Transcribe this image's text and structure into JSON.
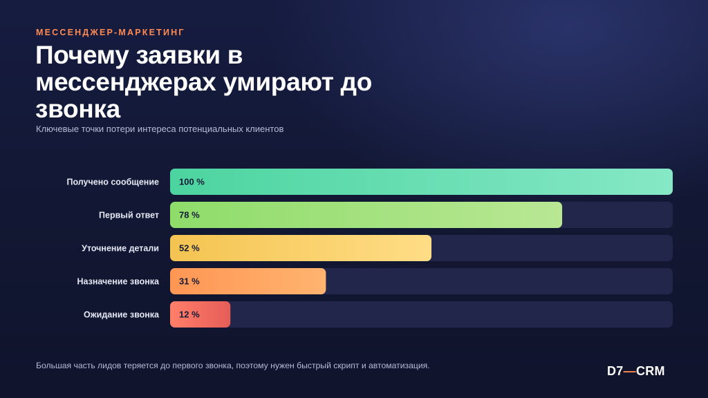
{
  "header": {
    "kicker": "МЕССЕНДЖЕР-МАРКЕТИНГ",
    "title": "Почему заявки в мессенджерах умирают до звонка",
    "subtitle": "Ключевые точки потери интереса потенциальных клиентов"
  },
  "chart_data": {
    "type": "bar",
    "orientation": "horizontal",
    "categories": [
      "Получено сообщение",
      "Первый ответ",
      "Уточнение детали",
      "Назначение звонка",
      "Ожидание звонка"
    ],
    "values": [
      100,
      78,
      52,
      31,
      12
    ],
    "value_labels": [
      "100 %",
      "78 %",
      "52 %",
      "31 %",
      "12 %"
    ],
    "xlim": [
      0,
      100
    ],
    "colors": [
      [
        "#4cd4a0",
        "#86e8c6"
      ],
      [
        "#8edc6a",
        "#b9e794"
      ],
      [
        "#f4c451",
        "#ffdd86"
      ],
      [
        "#ff9654",
        "#ffb46f"
      ],
      [
        "#ff7f6a",
        "#e65d58"
      ]
    ],
    "track_color": "#22264a"
  },
  "footer": {
    "note": "Большая часть лидов теряется до первого звонка, поэтому нужен быстрый скрипт и автоматизация.",
    "logo_left": "D7",
    "logo_dash": "—",
    "logo_right": "CRM"
  }
}
